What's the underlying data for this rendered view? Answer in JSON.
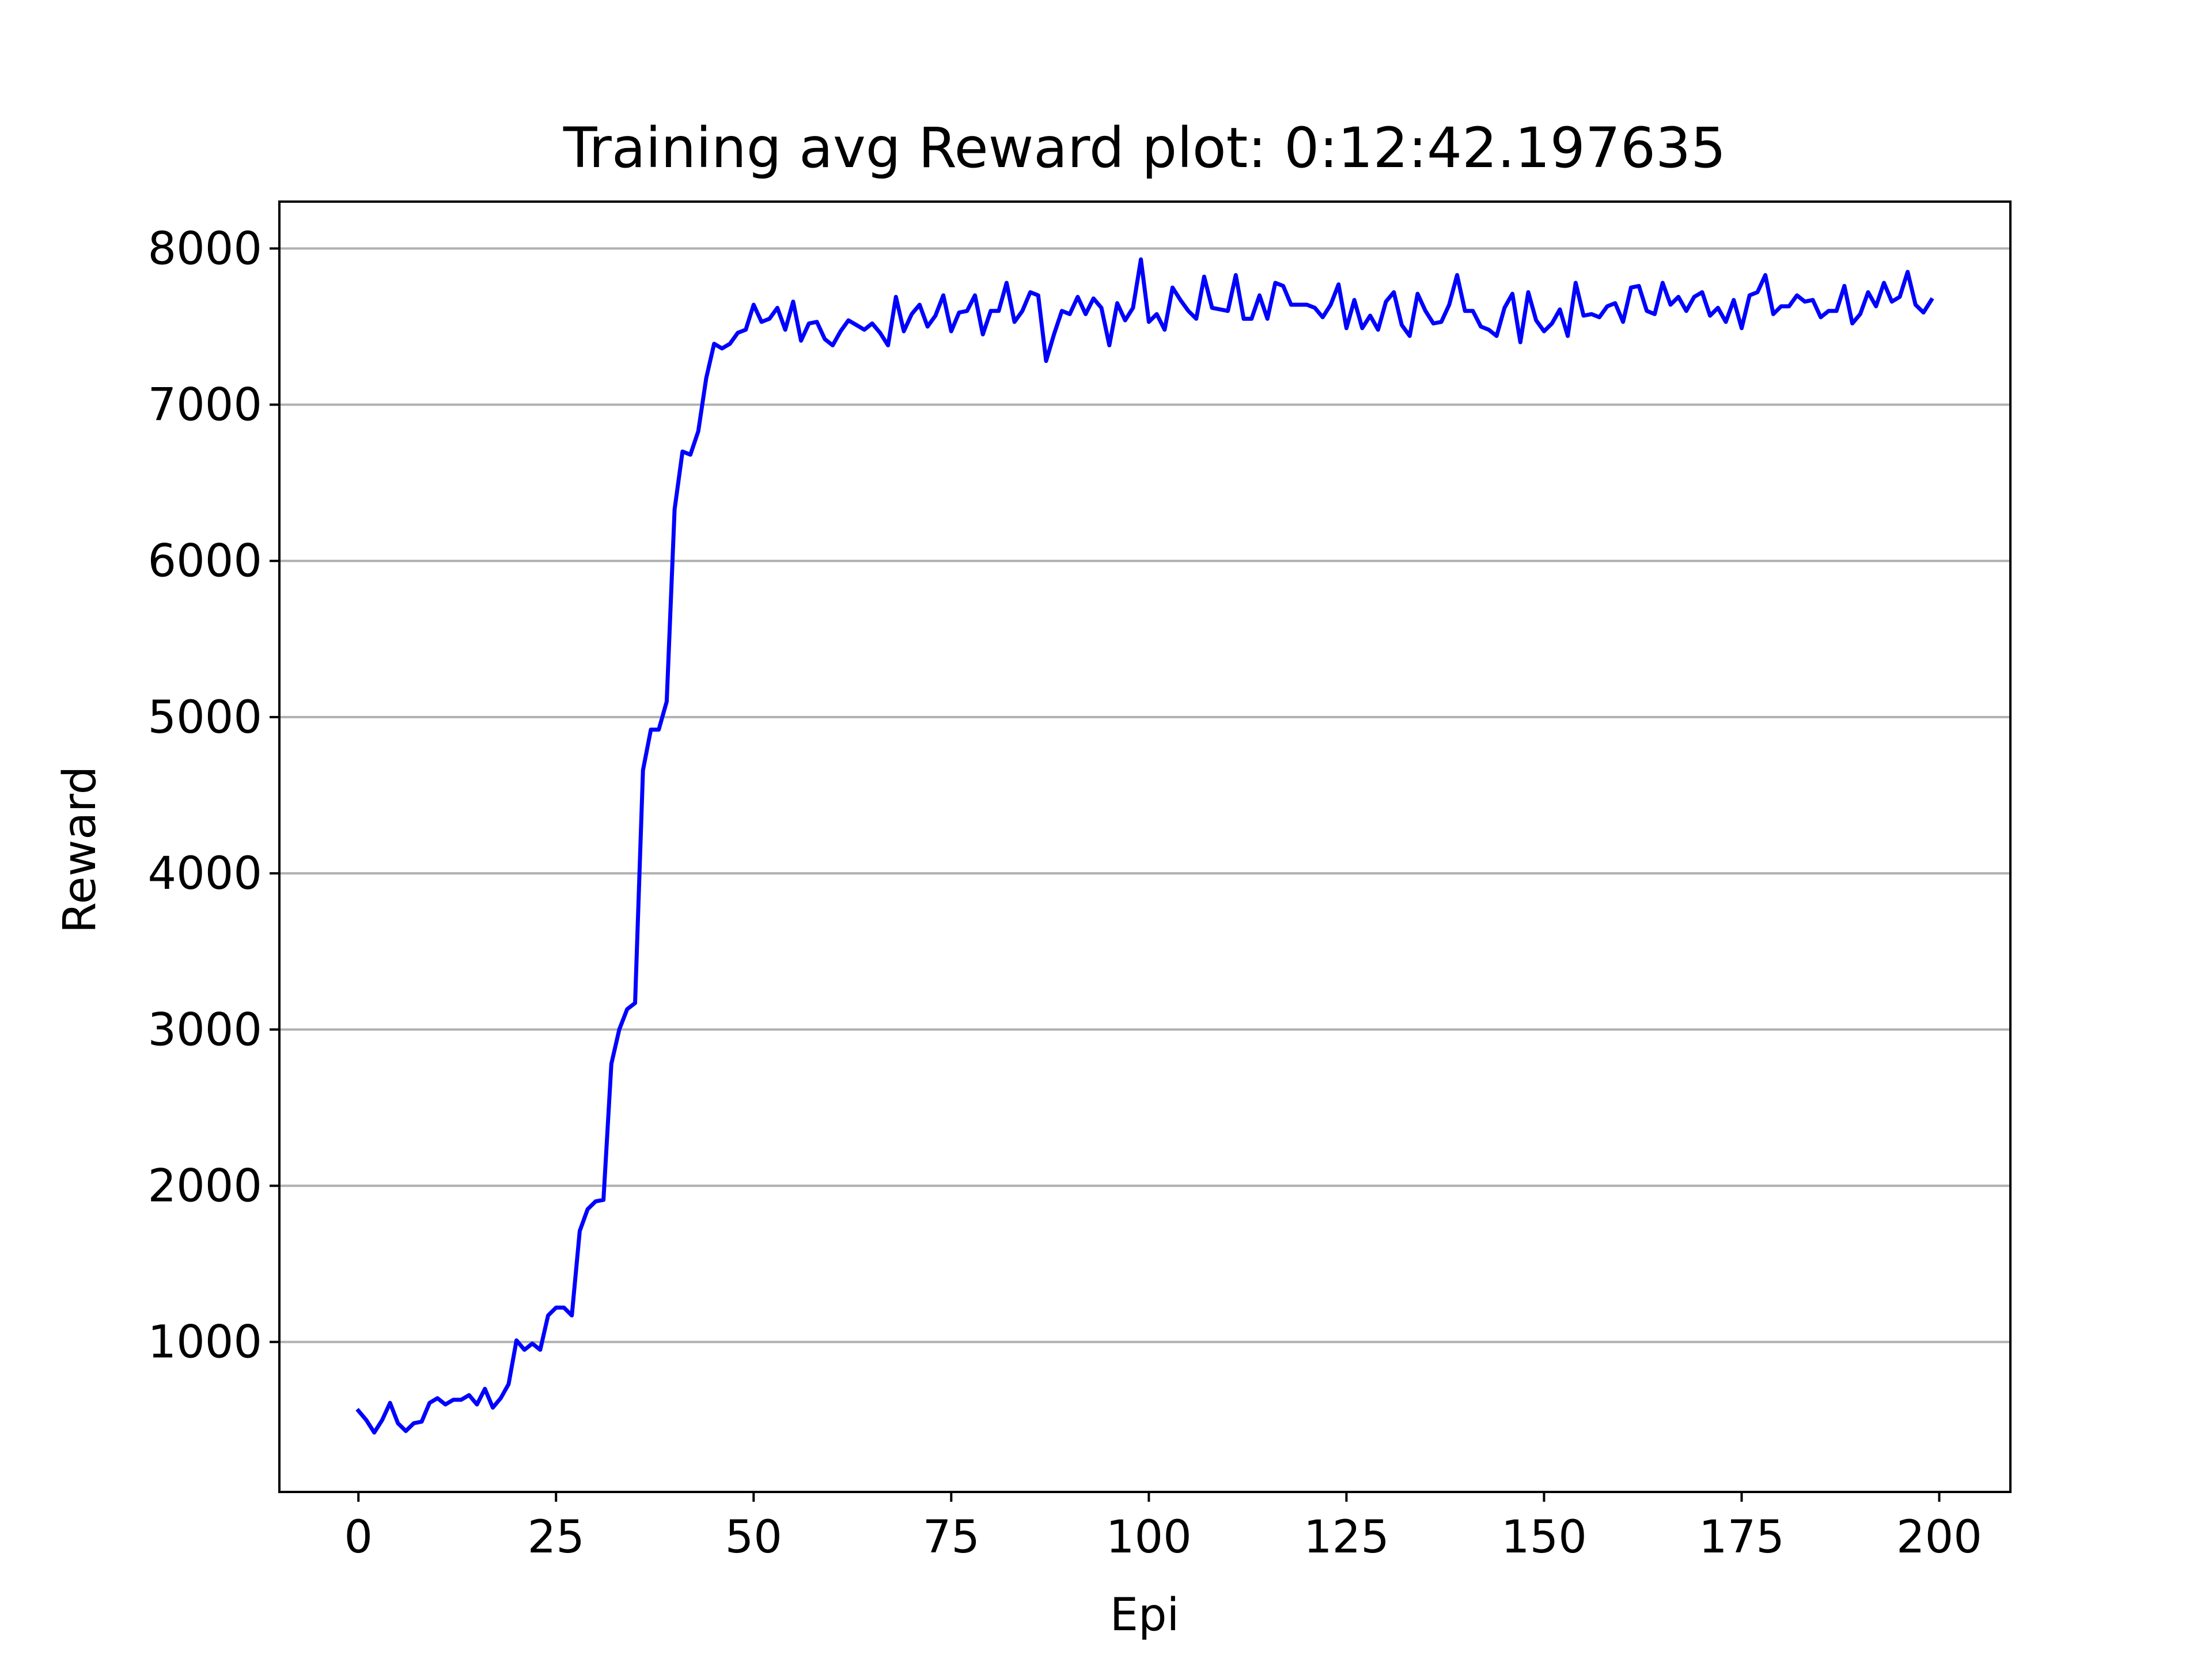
{
  "chart_data": {
    "type": "line",
    "title": "Training avg Reward plot: 0:12:42.197635",
    "xlabel": "Epi",
    "ylabel": "Reward",
    "xlim": [
      -10,
      209
    ],
    "ylim": [
      40,
      8300
    ],
    "xticks": [
      0,
      25,
      50,
      75,
      100,
      125,
      150,
      175,
      200
    ],
    "yticks": [
      1000,
      2000,
      3000,
      4000,
      5000,
      6000,
      7000,
      8000
    ],
    "grid": "y",
    "line_color": "#0000ff",
    "grid_color": "#b0b0b0",
    "series": [
      {
        "x": [
          0,
          1,
          2,
          3,
          4,
          5,
          6,
          7,
          8,
          9,
          10,
          11,
          12,
          13,
          14,
          15,
          16,
          17,
          18,
          19,
          20,
          21,
          22,
          23,
          24,
          25,
          26,
          27,
          28,
          29,
          30,
          31,
          32,
          33,
          34,
          35,
          36,
          37,
          38,
          39,
          40,
          41,
          42,
          43,
          44,
          45,
          46,
          47,
          48,
          49,
          50,
          51,
          52,
          53,
          54,
          55,
          56,
          57,
          58,
          59,
          60,
          61,
          62,
          63,
          64,
          65,
          66,
          67,
          68,
          69,
          70,
          71,
          72,
          73,
          74,
          75,
          76,
          77,
          78,
          79,
          80,
          81,
          82,
          83,
          84,
          85,
          86,
          87,
          88,
          89,
          90,
          91,
          92,
          93,
          94,
          95,
          96,
          97,
          98,
          99,
          100,
          101,
          102,
          103,
          104,
          105,
          106,
          107,
          108,
          109,
          110,
          111,
          112,
          113,
          114,
          115,
          116,
          117,
          118,
          119,
          120,
          121,
          122,
          123,
          124,
          125,
          126,
          127,
          128,
          129,
          130,
          131,
          132,
          133,
          134,
          135,
          136,
          137,
          138,
          139,
          140,
          141,
          142,
          143,
          144,
          145,
          146,
          147,
          148,
          149,
          150,
          151,
          152,
          153,
          154,
          155,
          156,
          157,
          158,
          159,
          160,
          161,
          162,
          163,
          164,
          165,
          166,
          167,
          168,
          169,
          170,
          171,
          172,
          173,
          174,
          175,
          176,
          177,
          178,
          179,
          180,
          181,
          182,
          183,
          184,
          185,
          186,
          187,
          188,
          189,
          190,
          191,
          192,
          193,
          194,
          195,
          196,
          197,
          198,
          199
        ],
        "values": [
          560,
          500,
          420,
          500,
          610,
          480,
          430,
          480,
          490,
          610,
          640,
          600,
          630,
          630,
          660,
          600,
          700,
          580,
          640,
          730,
          1010,
          950,
          990,
          950,
          1170,
          1220,
          1220,
          1170,
          1710,
          1850,
          1900,
          1910,
          2780,
          3000,
          3130,
          3170,
          4660,
          4920,
          4920,
          5100,
          6330,
          6700,
          6680,
          6830,
          7170,
          7390,
          7360,
          7390,
          7460,
          7480,
          7640,
          7530,
          7550,
          7620,
          7480,
          7660,
          7410,
          7520,
          7530,
          7420,
          7380,
          7470,
          7540,
          7510,
          7480,
          7520,
          7460,
          7380,
          7690,
          7470,
          7580,
          7640,
          7500,
          7570,
          7700,
          7470,
          7590,
          7600,
          7700,
          7450,
          7600,
          7600,
          7780,
          7530,
          7600,
          7720,
          7700,
          7280,
          7450,
          7600,
          7580,
          7690,
          7580,
          7680,
          7620,
          7380,
          7650,
          7540,
          7620,
          7930,
          7530,
          7580,
          7480,
          7750,
          7670,
          7600,
          7550,
          7820,
          7620,
          7610,
          7600,
          7830,
          7550,
          7550,
          7700,
          7550,
          7780,
          7760,
          7640,
          7640,
          7640,
          7620,
          7560,
          7640,
          7770,
          7490,
          7670,
          7490,
          7570,
          7480,
          7660,
          7720,
          7510,
          7440,
          7710,
          7600,
          7520,
          7530,
          7640,
          7830,
          7600,
          7600,
          7500,
          7480,
          7440,
          7620,
          7710,
          7400,
          7720,
          7540,
          7470,
          7520,
          7610,
          7440,
          7780,
          7570,
          7580,
          7560,
          7630,
          7650,
          7530,
          7750,
          7760,
          7600,
          7580,
          7780,
          7640,
          7690,
          7600,
          7690,
          7720,
          7570,
          7620,
          7530,
          7670,
          7490,
          7700,
          7720,
          7830,
          7580,
          7630,
          7630,
          7700,
          7660,
          7670,
          7560,
          7600,
          7600,
          7760,
          7520,
          7580,
          7720,
          7630,
          7780,
          7660,
          7690,
          7850,
          7640,
          7590,
          7670
        ]
      }
    ]
  }
}
